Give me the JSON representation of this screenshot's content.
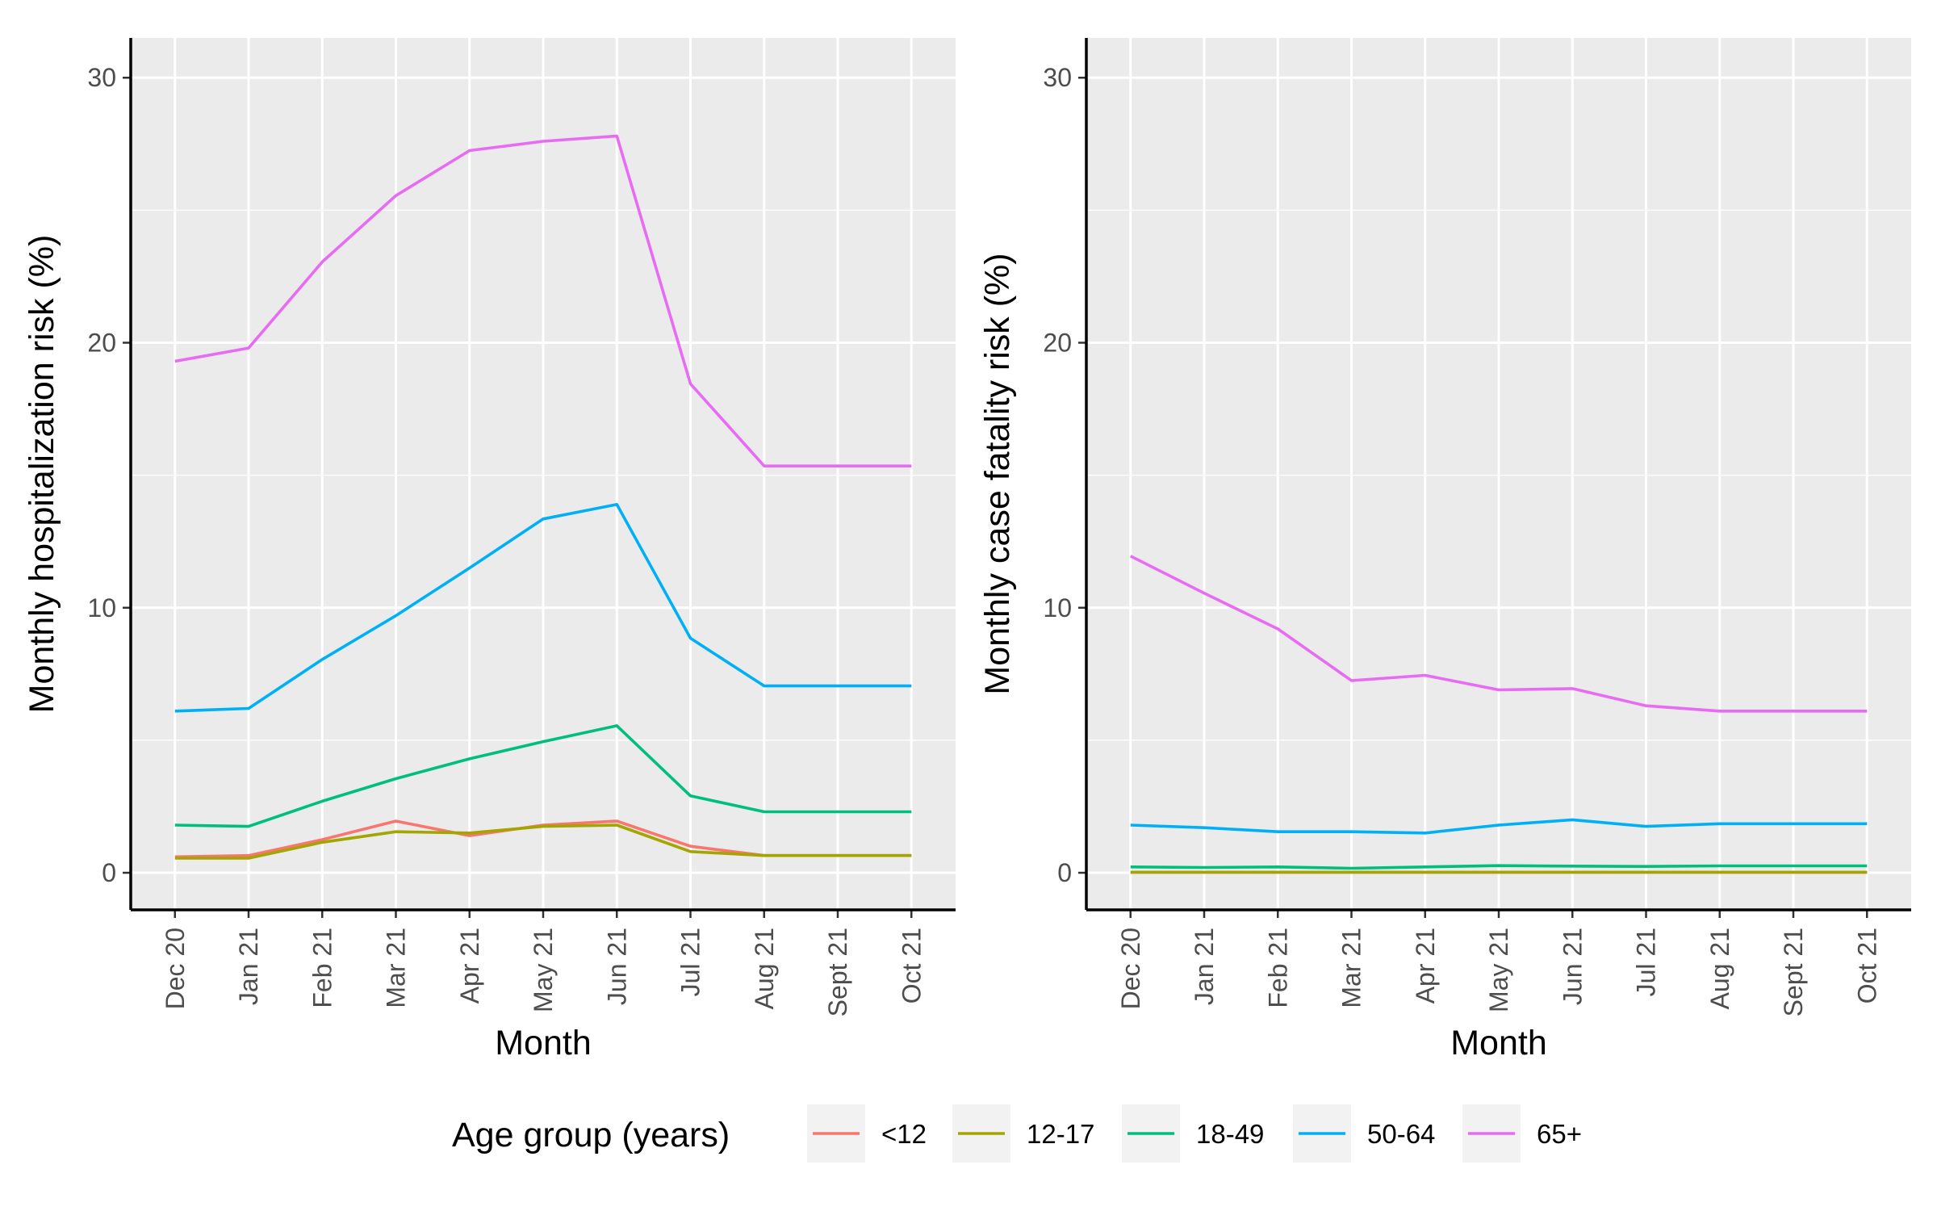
{
  "chart_data": [
    {
      "type": "line",
      "title": "",
      "xlabel": "Month",
      "ylabel": "Monthly hospitalization risk (%)",
      "categories": [
        "Dec 20",
        "Jan 21",
        "Feb 21",
        "Mar 21",
        "Apr 21",
        "May 21",
        "Jun 21",
        "Jul 21",
        "Aug 21",
        "Sept 21",
        "Oct 21"
      ],
      "yticks": [
        0,
        10,
        20,
        30
      ],
      "ylim": [
        -1.4,
        31.5
      ],
      "grid": true,
      "series": [
        {
          "name": "<12",
          "color": "#F8766D",
          "values": [
            0.6,
            0.65,
            1.25,
            1.95,
            1.4,
            1.8,
            1.95,
            1.0,
            0.65,
            0.65,
            0.65
          ]
        },
        {
          "name": "12-17",
          "color": "#A3A500",
          "values": [
            0.55,
            0.55,
            1.15,
            1.55,
            1.5,
            1.75,
            1.8,
            0.8,
            0.65,
            0.65,
            0.65
          ]
        },
        {
          "name": "18-49",
          "color": "#00BF7D",
          "values": [
            1.8,
            1.75,
            2.7,
            3.55,
            4.3,
            4.95,
            5.55,
            2.9,
            2.3,
            2.3,
            2.3
          ]
        },
        {
          "name": "50-64",
          "color": "#00B0F6",
          "values": [
            6.1,
            6.2,
            8.05,
            9.7,
            11.5,
            13.35,
            13.9,
            8.85,
            7.05,
            7.05,
            7.05
          ]
        },
        {
          "name": "65+",
          "color": "#E76BF3",
          "values": [
            19.3,
            19.8,
            23.05,
            25.55,
            27.25,
            27.6,
            27.8,
            18.45,
            15.35,
            15.35,
            15.35
          ]
        }
      ]
    },
    {
      "type": "line",
      "title": "",
      "xlabel": "Month",
      "ylabel": "Monthly case fatality risk (%)",
      "categories": [
        "Dec 20",
        "Jan 21",
        "Feb 21",
        "Mar 21",
        "Apr 21",
        "May 21",
        "Jun 21",
        "Jul 21",
        "Aug 21",
        "Sept 21",
        "Oct 21"
      ],
      "yticks": [
        0,
        10,
        20,
        30
      ],
      "ylim": [
        -1.4,
        31.5
      ],
      "grid": true,
      "series": [
        {
          "name": "<12",
          "color": "#F8766D",
          "values": [
            0.02,
            0.02,
            0.02,
            0.02,
            0.02,
            0.02,
            0.02,
            0.02,
            0.02,
            0.02,
            0.02
          ]
        },
        {
          "name": "12-17",
          "color": "#A3A500",
          "values": [
            0.02,
            0.02,
            0.02,
            0.02,
            0.02,
            0.02,
            0.02,
            0.02,
            0.02,
            0.02,
            0.02
          ]
        },
        {
          "name": "18-49",
          "color": "#00BF7D",
          "values": [
            0.22,
            0.2,
            0.22,
            0.17,
            0.22,
            0.27,
            0.25,
            0.24,
            0.26,
            0.26,
            0.26
          ]
        },
        {
          "name": "50-64",
          "color": "#00B0F6",
          "values": [
            1.8,
            1.7,
            1.55,
            1.55,
            1.5,
            1.8,
            2.0,
            1.75,
            1.85,
            1.85,
            1.85
          ]
        },
        {
          "name": "65+",
          "color": "#E76BF3",
          "values": [
            11.95,
            10.55,
            9.2,
            7.25,
            7.45,
            6.9,
            6.95,
            6.3,
            6.1,
            6.1,
            6.1
          ]
        }
      ]
    }
  ],
  "legend": {
    "title": "Age group (years)",
    "position": "bottom",
    "items": [
      {
        "label": "<12",
        "color": "#F8766D"
      },
      {
        "label": "12-17",
        "color": "#A3A500"
      },
      {
        "label": "18-49",
        "color": "#00BF7D"
      },
      {
        "label": "50-64",
        "color": "#00B0F6"
      },
      {
        "label": "65+",
        "color": "#E76BF3"
      }
    ]
  }
}
